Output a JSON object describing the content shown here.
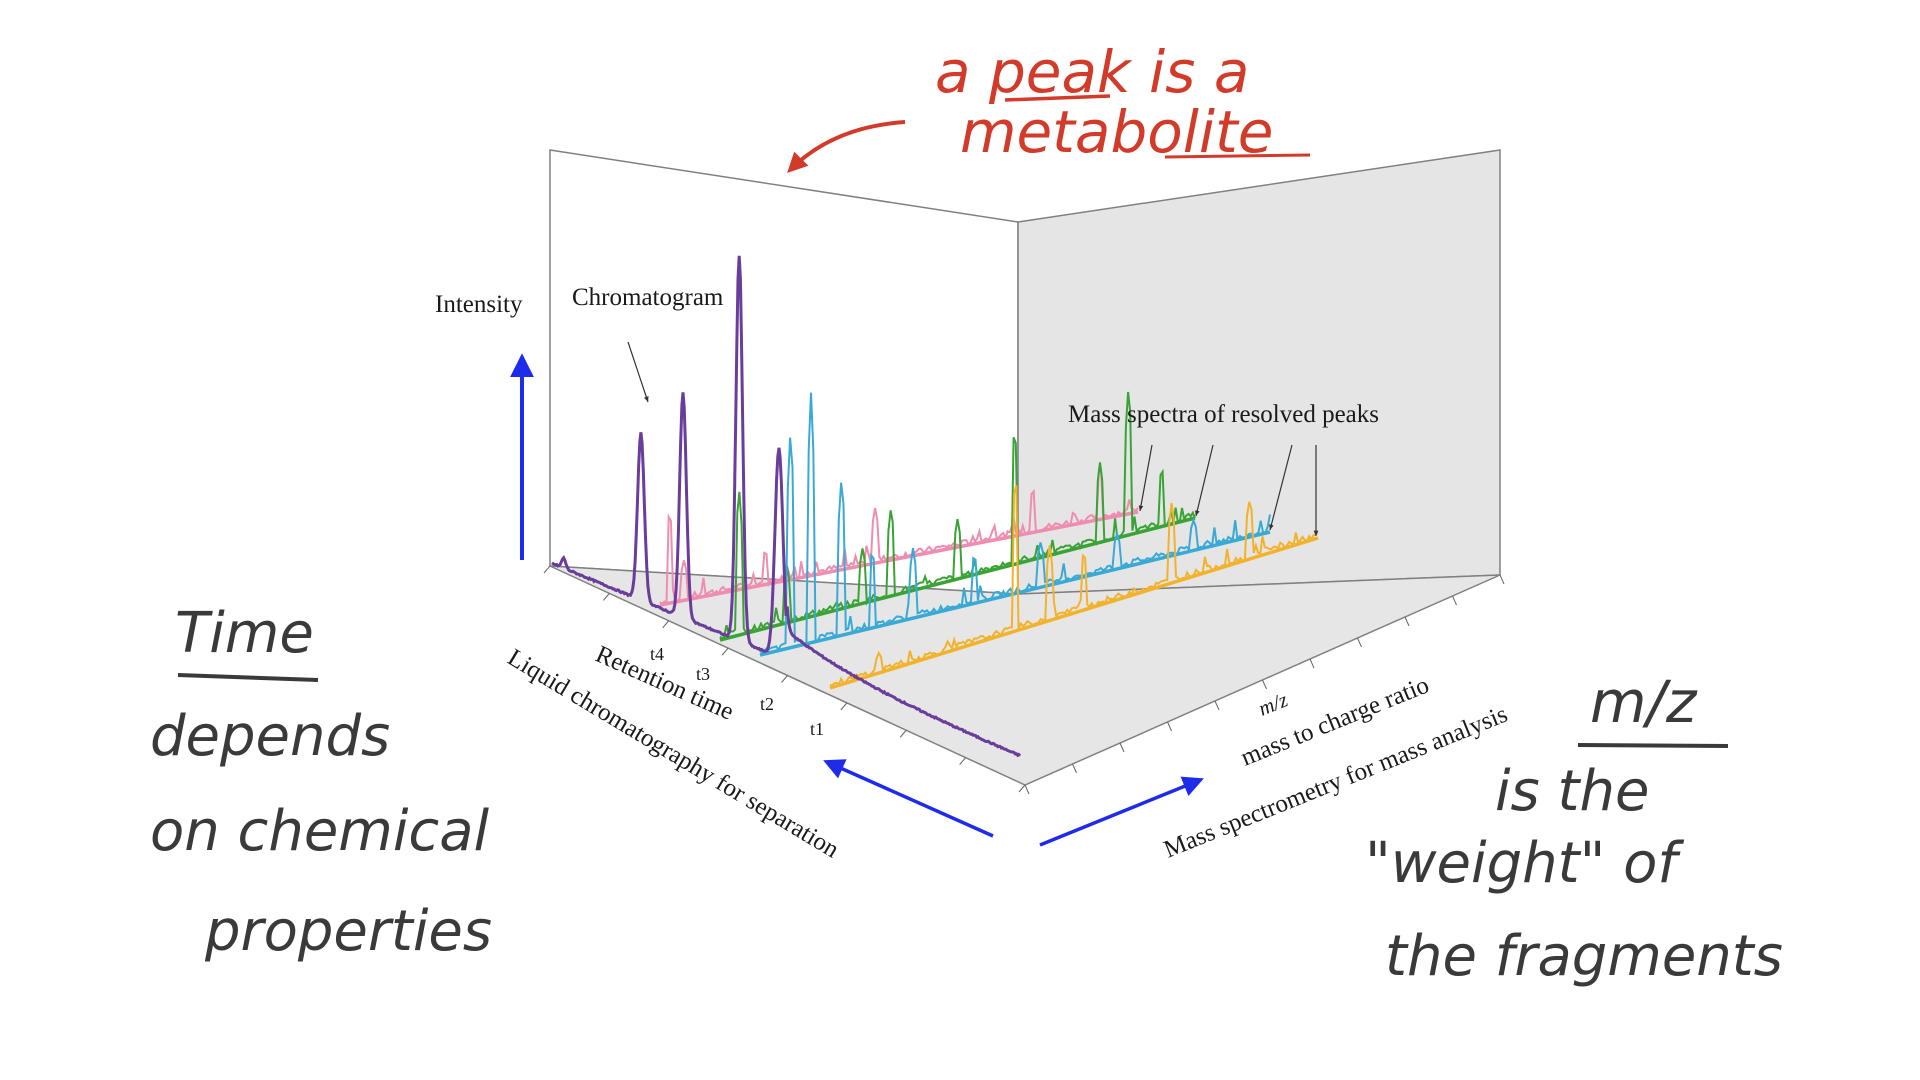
{
  "figure": {
    "intensity_label": "Intensity",
    "chromatogram_label": "Chromatogram",
    "mass_spectra_label": "Mass spectra of resolved peaks",
    "retention_axis_label": "Retention time",
    "lc_axis_label": "Liquid chromatography for separation",
    "mz_label": "m/z",
    "mz_axis_label": "mass to charge ratio",
    "ms_axis_label": "Mass spectrometry for mass analysis",
    "time_ticks": [
      "t4",
      "t3",
      "t2",
      "t1"
    ]
  },
  "spectra": [
    {
      "color": "#f08cb0"
    },
    {
      "color": "#3aa335"
    },
    {
      "color": "#39a9d6"
    },
    {
      "color": "#f2b22b"
    }
  ],
  "colors": {
    "chromatogram": "#6a3d9a",
    "annotation_red": "#d23a2a",
    "handwriting": "#3a3a3a",
    "arrow_blue": "#1f2bea"
  },
  "annotations": {
    "peak_note_line1": "a peak is a",
    "peak_note_line2": "metabolite",
    "time_title": "Time",
    "time_line1": "depends",
    "time_line2": "on chemical",
    "time_line3": "properties",
    "mz_title": "m/z",
    "mz_line1": "is the",
    "mz_line2": "\"weight\" of",
    "mz_line3": "the fragments"
  }
}
